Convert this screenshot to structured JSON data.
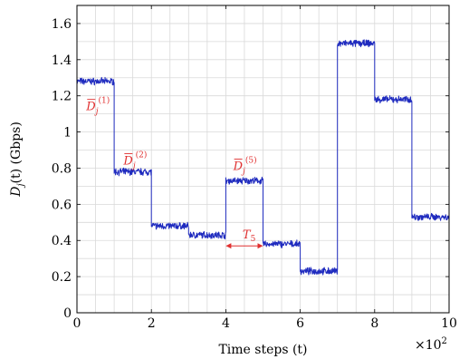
{
  "chart_data": {
    "type": "line",
    "xlabel": "Time steps (t)",
    "ylabel": "D_j(t) (Gbps)",
    "ylabel_parts": {
      "D": "D",
      "j": "j",
      "rest": "(t) (Gbps)"
    },
    "x_multiplier": "×10^2",
    "x_multiplier_parts": {
      "base": "×10",
      "exp": "2"
    },
    "xlim": [
      0,
      10
    ],
    "ylim": [
      0,
      1.7
    ],
    "x_ticks": [
      0,
      2,
      4,
      6,
      8,
      10
    ],
    "x_tick_labels": [
      "0",
      "2",
      "4",
      "6",
      "8",
      "10"
    ],
    "y_ticks": [
      0,
      0.2,
      0.4,
      0.6,
      0.8,
      1,
      1.2,
      1.4,
      1.6
    ],
    "y_tick_labels": [
      "0",
      "0.2",
      "0.4",
      "0.6",
      "0.8",
      "1",
      "1.2",
      "1.4",
      "1.6"
    ],
    "grid": true,
    "series": [
      {
        "color": "#1f2bbf",
        "noise_amplitude": 0.015,
        "segments": [
          {
            "x_start": 0,
            "x_end": 1,
            "mean": 1.28
          },
          {
            "x_start": 1,
            "x_end": 2,
            "mean": 0.78
          },
          {
            "x_start": 2,
            "x_end": 3,
            "mean": 0.48
          },
          {
            "x_start": 3,
            "x_end": 4,
            "mean": 0.43
          },
          {
            "x_start": 4,
            "x_end": 5,
            "mean": 0.73
          },
          {
            "x_start": 5,
            "x_end": 6,
            "mean": 0.38
          },
          {
            "x_start": 6,
            "x_end": 7,
            "mean": 0.23
          },
          {
            "x_start": 7,
            "x_end": 8,
            "mean": 1.49
          },
          {
            "x_start": 8,
            "x_end": 9,
            "mean": 1.18
          },
          {
            "x_start": 9,
            "x_end": 10,
            "mean": 0.53
          }
        ]
      }
    ],
    "annotations": [
      {
        "text": "D̄_j^(1)",
        "base": "D",
        "sub": "j",
        "sup": "(1)",
        "x": 0.25,
        "y": 1.12,
        "color": "#e03030"
      },
      {
        "text": "D̄_j^(2)",
        "base": "D",
        "sub": "j",
        "sup": "(2)",
        "x": 1.25,
        "y": 0.82,
        "color": "#e03030"
      },
      {
        "text": "D̄_j^(5)",
        "base": "D",
        "sub": "j",
        "sup": "(5)",
        "x": 4.2,
        "y": 0.79,
        "color": "#e03030"
      },
      {
        "text": "T_5",
        "base": "T",
        "sub": "5",
        "x": 4.45,
        "y": 0.41,
        "color": "#e03030"
      }
    ],
    "period_marker": {
      "x_start": 4,
      "x_end": 5,
      "y": 0.37,
      "color": "#e03030"
    }
  }
}
